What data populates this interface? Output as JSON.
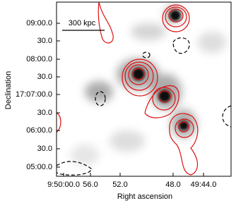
{
  "axes": {
    "x_label": "Right ascension",
    "y_label": "Declination",
    "x_tick_labels": [
      "9:50:00.0",
      "56.0",
      "52.0",
      "48.0",
      "49:44.0"
    ],
    "y_tick_labels": [
      "09:00.0",
      "30.0",
      "08:00.0",
      "30.0",
      "17:07:00.0",
      "30.0",
      "06:00.0",
      "30.0",
      "05:00.0"
    ]
  },
  "scale_bar": "300 kpc"
}
